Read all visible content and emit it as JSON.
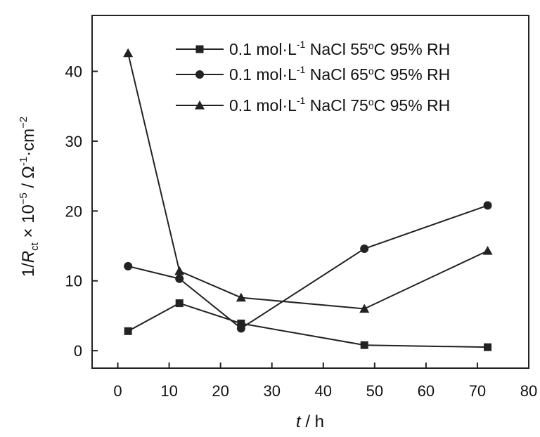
{
  "chart_data": {
    "type": "line",
    "x_label": "t / h",
    "y_label": "1/R_ct × 10^-5 / Ω^-1·cm^-2",
    "xlim": [
      -5,
      80
    ],
    "ylim": [
      -2.5,
      48
    ],
    "x_ticks": [
      0,
      10,
      20,
      30,
      40,
      50,
      60,
      70,
      80
    ],
    "y_ticks": [
      0,
      10,
      20,
      30,
      40
    ],
    "legend_position": "top-right",
    "grid": false,
    "series": [
      {
        "name": "0.1 mol·L-1 NaCl 55°C 95% RH",
        "legend": {
          "prefix": "0.1 mol·L",
          "sup": "-1",
          "mid": " NaCl 55",
          "temp_sup": "o",
          "suffix": "C 95% RH"
        },
        "marker": "square",
        "x": [
          2,
          12,
          24,
          48,
          72
        ],
        "y": [
          2.8,
          6.8,
          3.9,
          0.8,
          0.5
        ]
      },
      {
        "name": "0.1 mol·L-1 NaCl 65°C 95% RH",
        "legend": {
          "prefix": "0.1 mol·L",
          "sup": "-1",
          "mid": " NaCl 65",
          "temp_sup": "o",
          "suffix": "C 95% RH"
        },
        "marker": "circle",
        "x": [
          2,
          12,
          24,
          48,
          72
        ],
        "y": [
          12.1,
          10.3,
          3.2,
          14.6,
          20.8
        ]
      },
      {
        "name": "0.1 mol·L-1 NaCl 75°C 95% RH",
        "legend": {
          "prefix": "0.1 mol·L",
          "sup": "-1",
          "mid": " NaCl 75",
          "temp_sup": "o",
          "suffix": "C 95% RH"
        },
        "marker": "triangle",
        "x": [
          2,
          12,
          24,
          48,
          72
        ],
        "y": [
          42.6,
          11.4,
          7.6,
          6.0,
          14.3
        ]
      }
    ]
  }
}
